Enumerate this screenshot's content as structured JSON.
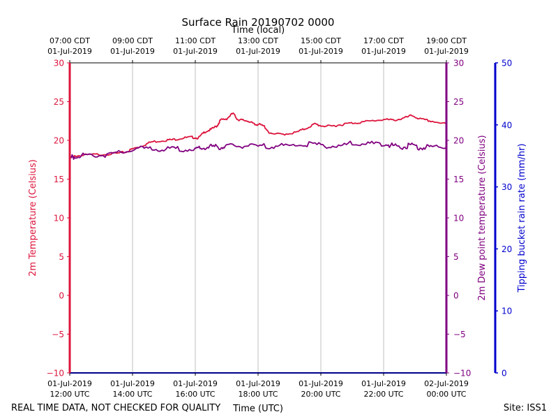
{
  "chart_data": {
    "type": "line",
    "title": "Surface Rain 20190702 0000",
    "top_axis_label": "Time (local)",
    "xlabel": "Time (UTC)",
    "ylabel_left": "2m Temperature (Celsius)",
    "ylabel_right": "2m Dew point temperature (Celsius)",
    "ylabel_far_right": "Tipping bucket rain rate (mm/hr)",
    "ylim_left": [
      -10,
      30
    ],
    "ylim_far_right": [
      0,
      50
    ],
    "xlim_hours_utc": [
      12,
      24
    ],
    "y_ticks": [
      "30",
      "25",
      "20",
      "15",
      "10",
      "5",
      "0",
      "−5",
      "−10"
    ],
    "rain_ticks": [
      "50",
      "40",
      "30",
      "20",
      "10",
      "0"
    ],
    "x_ticks_utc": [
      {
        "date": "01-Jul-2019",
        "time": "12:00 UTC"
      },
      {
        "date": "01-Jul-2019",
        "time": "14:00 UTC"
      },
      {
        "date": "01-Jul-2019",
        "time": "16:00 UTC"
      },
      {
        "date": "01-Jul-2019",
        "time": "18:00 UTC"
      },
      {
        "date": "01-Jul-2019",
        "time": "20:00 UTC"
      },
      {
        "date": "01-Jul-2019",
        "time": "22:00 UTC"
      },
      {
        "date": "02-Jul-2019",
        "time": "00:00 UTC"
      }
    ],
    "x_ticks_local": [
      {
        "time": "07:00 CDT",
        "date": "01-Jul-2019"
      },
      {
        "time": "09:00 CDT",
        "date": "01-Jul-2019"
      },
      {
        "time": "11:00 CDT",
        "date": "01-Jul-2019"
      },
      {
        "time": "13:00 CDT",
        "date": "01-Jul-2019"
      },
      {
        "time": "15:00 CDT",
        "date": "01-Jul-2019"
      },
      {
        "time": "17:00 CDT",
        "date": "01-Jul-2019"
      },
      {
        "time": "19:00 CDT",
        "date": "01-Jul-2019"
      }
    ],
    "series": [
      {
        "name": "2m Temperature",
        "color": "#dc143c",
        "x": [
          12.0,
          12.2,
          12.5,
          13.0,
          13.5,
          13.8,
          14.0,
          14.3,
          14.6,
          15.0,
          15.3,
          15.6,
          15.9,
          16.1,
          16.3,
          16.5,
          16.7,
          16.8,
          17.0,
          17.2,
          17.35,
          17.5,
          17.7,
          17.9,
          18.0,
          18.2,
          18.4,
          18.8,
          19.2,
          19.5,
          19.8,
          20.0,
          20.3,
          20.6,
          20.9,
          21.2,
          21.6,
          22.0,
          22.3,
          22.6,
          22.9,
          23.2,
          23.5,
          24.0
        ],
        "y": [
          17.7,
          18.0,
          18.1,
          18.2,
          18.3,
          18.5,
          18.9,
          19.3,
          19.8,
          20.0,
          20.1,
          20.3,
          20.4,
          20.3,
          21.1,
          21.4,
          21.9,
          22.6,
          22.8,
          23.5,
          22.7,
          22.6,
          22.5,
          22.0,
          22.1,
          21.8,
          20.8,
          20.8,
          21.0,
          21.5,
          22.1,
          21.9,
          21.8,
          22.0,
          22.2,
          22.3,
          22.5,
          22.7,
          22.6,
          22.8,
          23.2,
          22.7,
          22.5,
          22.1
        ]
      },
      {
        "name": "2m Dew point temperature",
        "color": "#800080",
        "x": [
          12.0,
          12.2,
          12.5,
          13.0,
          13.5,
          14.0,
          14.5,
          15.0,
          15.5,
          16.0,
          16.2,
          16.5,
          16.8,
          17.0,
          17.5,
          18.0,
          18.5,
          19.0,
          19.5,
          20.0,
          20.5,
          21.0,
          21.5,
          22.0,
          22.3,
          22.6,
          22.9,
          23.2,
          23.5,
          24.0
        ],
        "y": [
          17.7,
          18.0,
          18.1,
          18.1,
          18.3,
          18.8,
          19.0,
          18.8,
          18.9,
          18.8,
          19.0,
          19.2,
          19.1,
          19.2,
          19.3,
          19.2,
          19.3,
          19.3,
          19.5,
          19.4,
          19.2,
          19.6,
          19.5,
          19.6,
          19.3,
          19.1,
          19.4,
          19.0,
          19.2,
          19.1
        ]
      }
    ],
    "grid": true
  },
  "footer": {
    "disclaimer": "REAL TIME DATA, NOT CHECKED FOR QUALITY",
    "site": "Site: ISS1"
  }
}
